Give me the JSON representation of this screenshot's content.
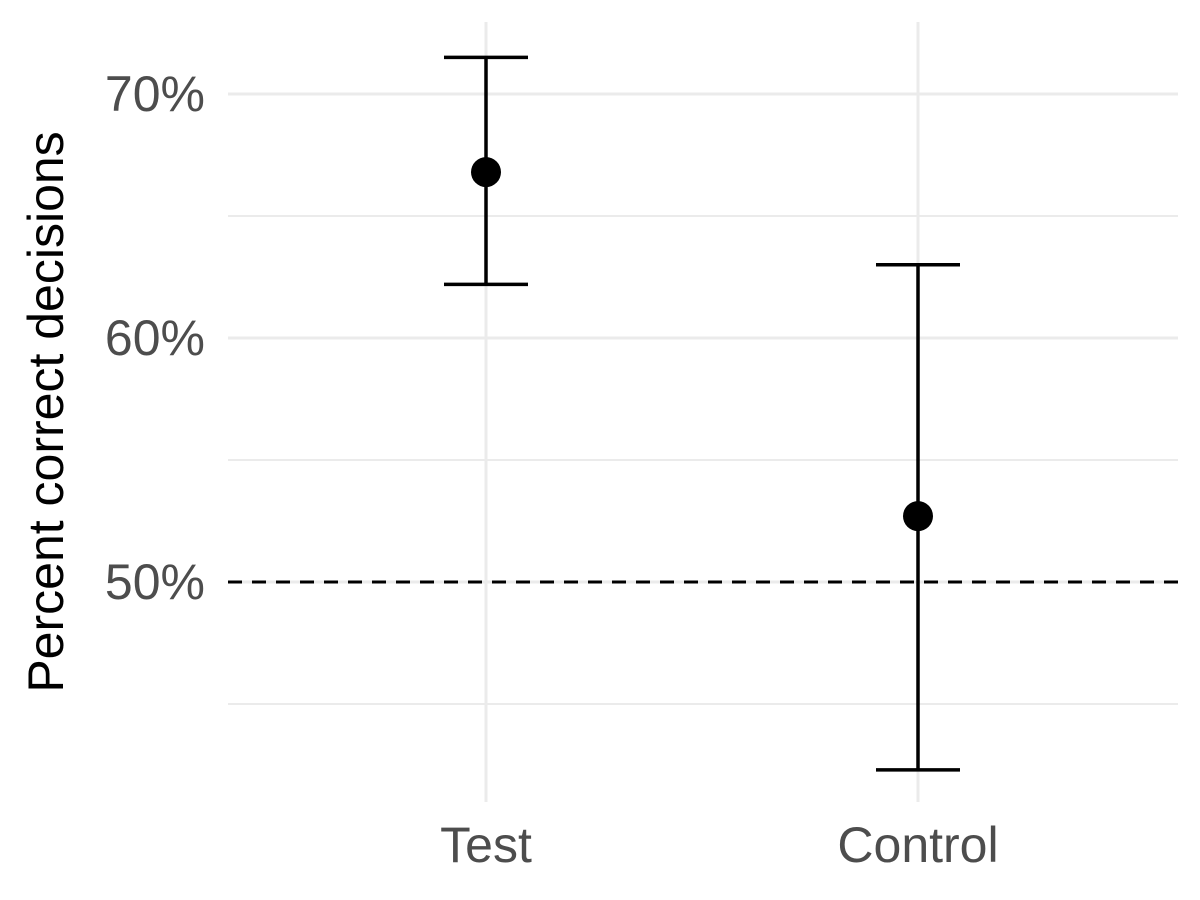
{
  "chart_data": {
    "type": "scatter",
    "title": "",
    "xlabel": "",
    "ylabel": "Percent correct decisions",
    "categories": [
      "Test",
      "Control"
    ],
    "points": [
      {
        "category": "Test",
        "y": 66.8,
        "ymin": 62.2,
        "ymax": 71.5
      },
      {
        "category": "Control",
        "y": 52.7,
        "ymin": 42.3,
        "ymax": 63.0
      }
    ],
    "reference_line": {
      "y": 50,
      "style": "dashed"
    },
    "yticks": [
      50,
      60,
      70
    ],
    "ytick_labels": [
      "50%",
      "60%",
      "70%"
    ],
    "ylim": [
      41.0,
      73.0
    ],
    "grid": true,
    "legend": "none",
    "colors": {
      "points": "#000000",
      "grid": "#ebebeb",
      "tick_text": "#4d4d4d"
    }
  }
}
